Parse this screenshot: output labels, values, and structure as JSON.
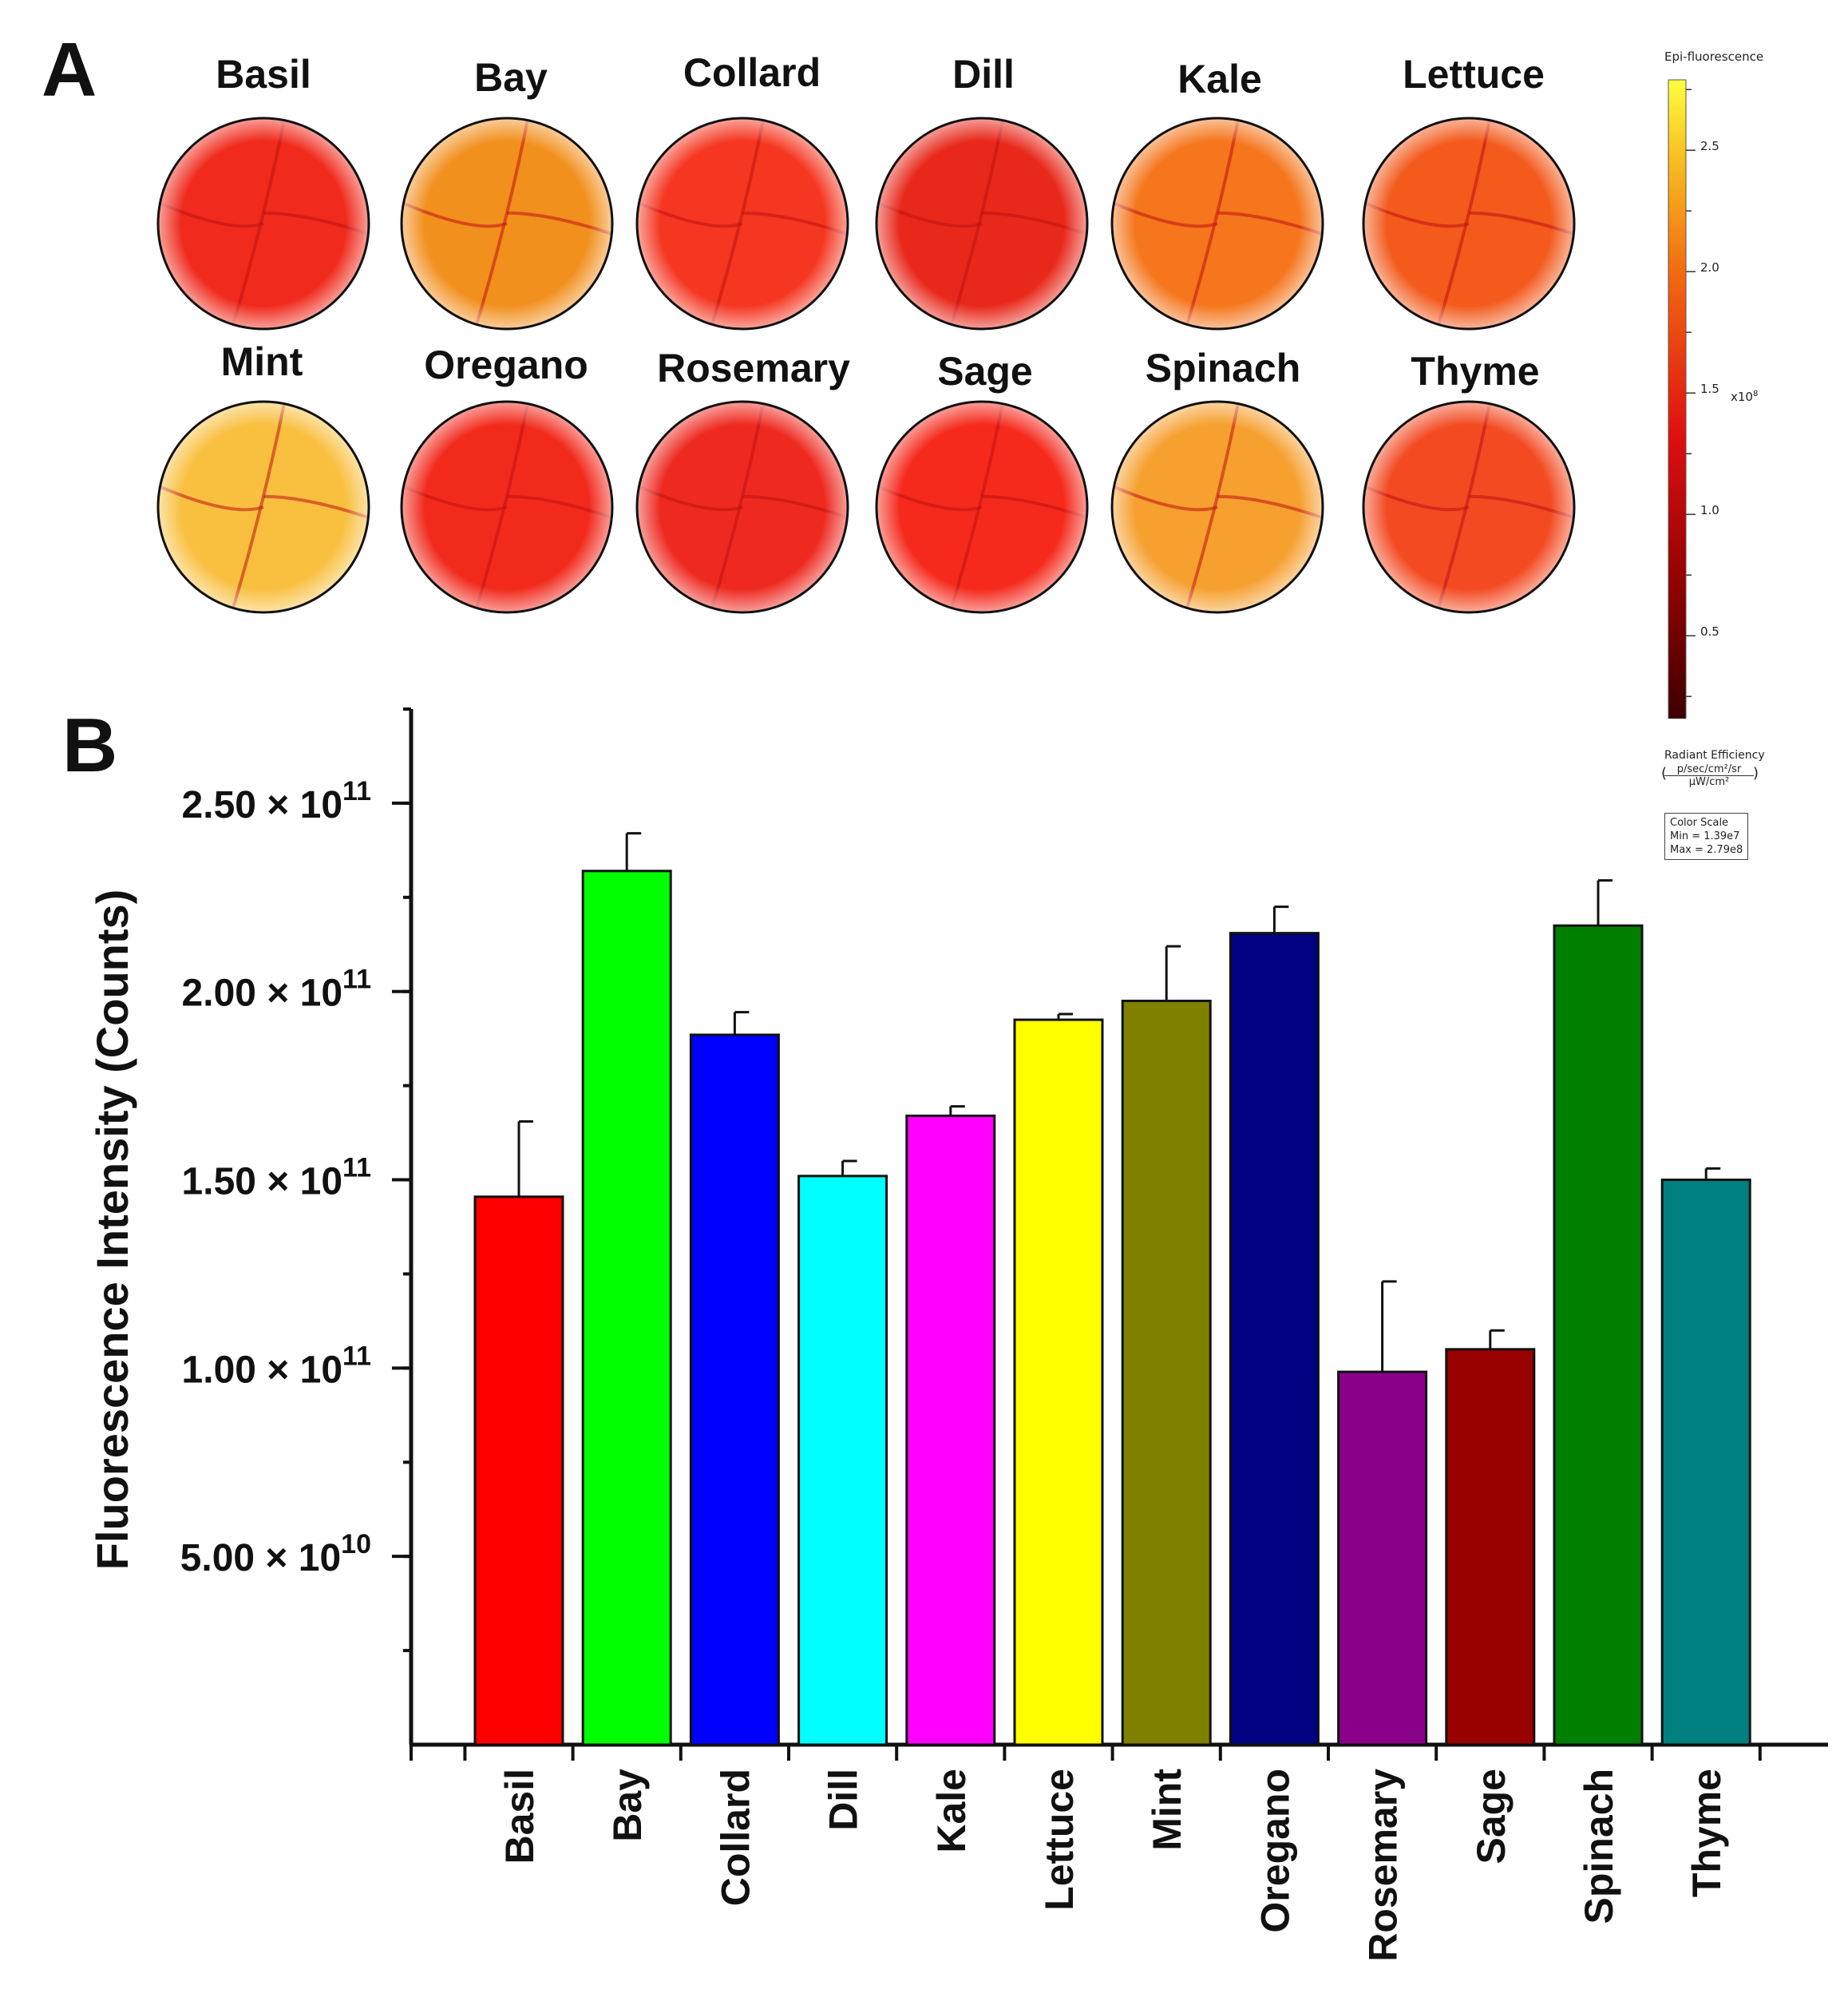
{
  "panel_a": {
    "letter": "A",
    "samples": [
      "Basil",
      "Bay",
      "Collard",
      "Dill",
      "Kale",
      "Lettuce",
      "Mint",
      "Oregano",
      "Rosemary",
      "Sage",
      "Spinach",
      "Thyme"
    ],
    "colors": [
      "#f02a1c",
      "#f2901e",
      "#f53620",
      "#e8281a",
      "#f5761d",
      "#f35a1c",
      "#f9c040",
      "#f22a1c",
      "#ee2a20",
      "#f52a1c",
      "#f6a030",
      "#f34a22"
    ],
    "color_scale": {
      "title": "Epi-fluorescence",
      "ticks": [
        "2.5",
        "2.0",
        "1.5",
        "1.0",
        "0.5"
      ],
      "tick_values": [
        2.5,
        2.0,
        1.5,
        1.0,
        0.5
      ],
      "range": [
        0.139,
        2.79
      ],
      "unit_base": "x10",
      "unit_exp": "8",
      "radiant_label": "Radiant Efficiency",
      "frac_num": "p/sec/cm²/sr",
      "frac_den": "μW/cm²",
      "box_title": "Color Scale",
      "box_min": "Min = 1.39e7",
      "box_max": "Max = 2.79e8"
    }
  },
  "panel_b": {
    "letter": "B"
  },
  "chart_data": {
    "type": "bar",
    "title": "",
    "xlabel": "",
    "ylabel": "Fluorescence Intensity (Counts)",
    "ylim": [
      0,
      275000000000
    ],
    "categories": [
      "Basil",
      "Bay",
      "Collard",
      "Dill",
      "Kale",
      "Lettuce",
      "Mint",
      "Oregano",
      "Rosemary",
      "Sage",
      "Spinach",
      "Thyme"
    ],
    "values": [
      145500000000,
      232000000000,
      188500000000,
      151000000000,
      167000000000,
      192500000000,
      197500000000,
      215500000000,
      99000000000,
      105000000000,
      217500000000,
      150000000000
    ],
    "errors": [
      20000000000,
      10000000000,
      6000000000,
      4000000000,
      2500000000,
      1500000000,
      14500000000,
      7000000000,
      24000000000,
      5000000000,
      12000000000,
      3000000000
    ],
    "colors": [
      "#ff0000",
      "#00ff00",
      "#0000ff",
      "#00ffff",
      "#ff00ff",
      "#ffff00",
      "#808000",
      "#000080",
      "#8b008b",
      "#990000",
      "#007f00",
      "#008080"
    ],
    "yticks": [
      {
        "value": 250000000000,
        "mant": "2.50 × 10",
        "exp": "11"
      },
      {
        "value": 200000000000,
        "mant": "2.00 × 10",
        "exp": "11"
      },
      {
        "value": 150000000000,
        "mant": "1.50 × 10",
        "exp": "11"
      },
      {
        "value": 100000000000,
        "mant": "1.00 × 10",
        "exp": "11"
      },
      {
        "value": 50000000000,
        "mant": "5.00 × 10",
        "exp": "10"
      }
    ],
    "minor_step": 25000000000,
    "grid": false,
    "legend": "none"
  }
}
